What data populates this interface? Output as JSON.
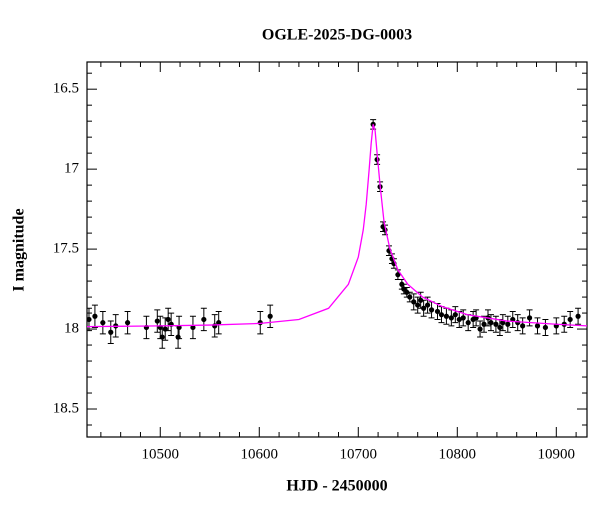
{
  "chart_data": {
    "type": "scatter",
    "title": "OGLE-2025-DG-0003",
    "x_label": "HJD - 2450000",
    "y_label": "I magnitude",
    "xlim": [
      10426,
      10931
    ],
    "ylim": [
      16.33,
      18.675
    ],
    "y_inverted": true,
    "xticks": [
      10500,
      10600,
      10700,
      10800,
      10900
    ],
    "yticks": [
      16.5,
      17,
      17.5,
      18,
      18.5
    ],
    "xticks_minor": [
      10440,
      10460,
      10480,
      10520,
      10540,
      10560,
      10580,
      10620,
      10640,
      10660,
      10680,
      10720,
      10740,
      10760,
      10780,
      10820,
      10840,
      10860,
      10880,
      10920
    ],
    "yticks_minor": [
      16.4,
      16.6,
      16.7,
      16.8,
      16.9,
      17.1,
      17.2,
      17.3,
      17.4,
      17.6,
      17.7,
      17.8,
      17.9,
      18.1,
      18.2,
      18.3,
      18.4,
      18.6
    ],
    "series": [
      {
        "type": "scatter",
        "color": "#000000",
        "x": [
          10428,
          10434,
          10442,
          10450,
          10455,
          10467,
          10486,
          10497,
          10500,
          10502,
          10505,
          10508,
          10511,
          10518,
          10519,
          10533,
          10544,
          10555,
          10559,
          10601,
          10611,
          10715,
          10719,
          10722,
          10725,
          10727,
          10731,
          10734,
          10736,
          10740,
          10744,
          10746,
          10749,
          10752,
          10756,
          10760,
          10763,
          10766,
          10770,
          10774,
          10780,
          10784,
          10789,
          10794,
          10798,
          10802,
          10806,
          10811,
          10816,
          10819,
          10823,
          10827,
          10831,
          10834,
          10839,
          10843,
          10846,
          10851,
          10856,
          10861,
          10866,
          10873,
          10881,
          10889,
          10900,
          10908,
          10914,
          10922
        ],
        "values": [
          17.94,
          17.92,
          17.96,
          18.02,
          17.98,
          17.96,
          17.99,
          17.95,
          17.99,
          18.05,
          18.0,
          17.94,
          17.97,
          18.05,
          17.99,
          17.99,
          17.94,
          17.98,
          17.96,
          17.96,
          17.92,
          16.72,
          16.94,
          17.11,
          17.36,
          17.38,
          17.51,
          17.56,
          17.59,
          17.66,
          17.72,
          17.75,
          17.77,
          17.8,
          17.83,
          17.85,
          17.82,
          17.87,
          17.85,
          17.88,
          17.89,
          17.91,
          17.92,
          17.93,
          17.91,
          17.94,
          17.93,
          17.96,
          17.94,
          17.93,
          18.0,
          17.97,
          17.93,
          17.96,
          17.97,
          17.99,
          17.96,
          17.97,
          17.94,
          17.96,
          17.98,
          17.93,
          17.98,
          17.99,
          17.98,
          17.97,
          17.94,
          17.92
        ],
        "errors": [
          0.07,
          0.07,
          0.07,
          0.07,
          0.07,
          0.07,
          0.07,
          0.07,
          0.07,
          0.07,
          0.07,
          0.07,
          0.07,
          0.07,
          0.07,
          0.07,
          0.07,
          0.07,
          0.07,
          0.07,
          0.07,
          0.03,
          0.03,
          0.03,
          0.03,
          0.03,
          0.03,
          0.03,
          0.03,
          0.03,
          0.03,
          0.03,
          0.03,
          0.03,
          0.05,
          0.05,
          0.05,
          0.05,
          0.05,
          0.05,
          0.05,
          0.05,
          0.05,
          0.05,
          0.05,
          0.05,
          0.05,
          0.05,
          0.05,
          0.05,
          0.05,
          0.05,
          0.05,
          0.05,
          0.05,
          0.05,
          0.05,
          0.05,
          0.05,
          0.05,
          0.05,
          0.05,
          0.05,
          0.05,
          0.05,
          0.05,
          0.05,
          0.05
        ]
      },
      {
        "type": "line",
        "color": "#ff00ff",
        "x": [
          10426,
          10500,
          10550,
          10600,
          10640,
          10670,
          10690,
          10700,
          10705,
          10708,
          10711,
          10713,
          10715,
          10717,
          10719,
          10722,
          10726,
          10732,
          10740,
          10750,
          10765,
          10785,
          10810,
          10850,
          10900,
          10931
        ],
        "values": [
          17.985,
          17.98,
          17.975,
          17.965,
          17.94,
          17.87,
          17.72,
          17.55,
          17.38,
          17.22,
          17.0,
          16.84,
          16.72,
          16.76,
          16.9,
          17.1,
          17.33,
          17.5,
          17.63,
          17.72,
          17.8,
          17.86,
          17.91,
          17.95,
          17.97,
          17.98
        ]
      }
    ]
  }
}
